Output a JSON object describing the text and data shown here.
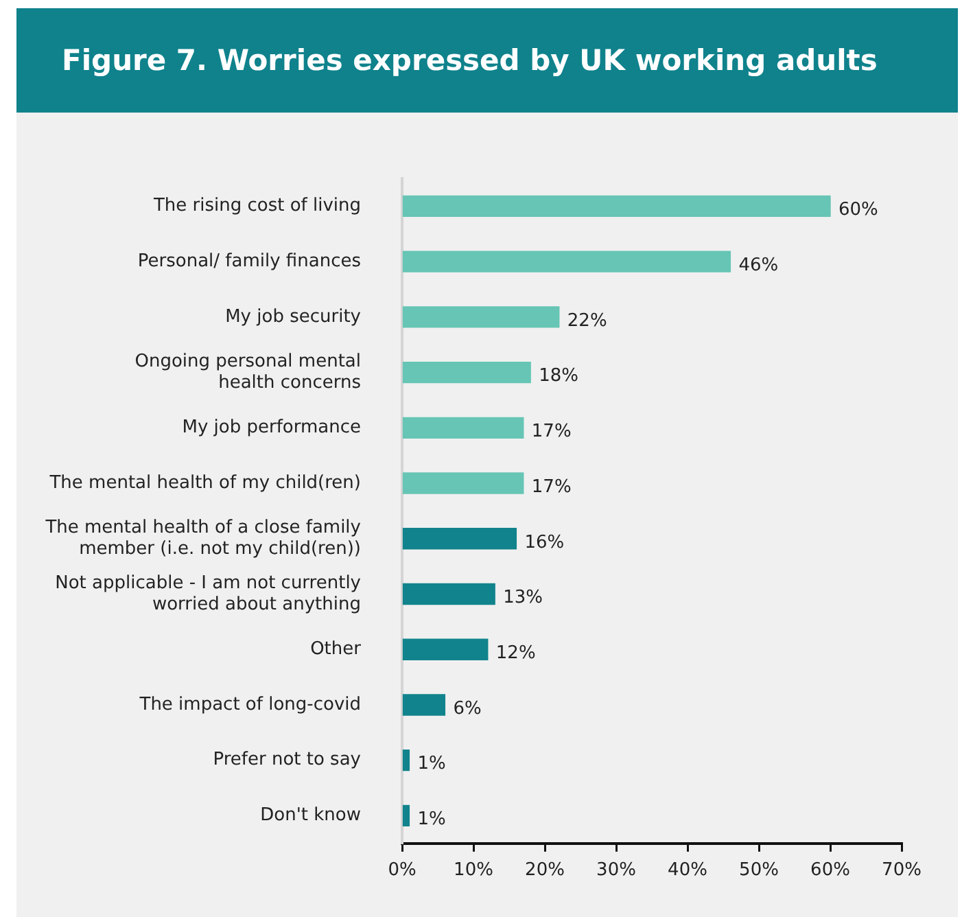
{
  "chart_data": {
    "type": "bar",
    "orientation": "horizontal",
    "title": "Figure 7. Worries expressed by UK working adults",
    "categories": [
      "The rising cost of living",
      "Personal/ family finances",
      "My job security",
      "Ongoing personal mental\nhealth concerns",
      "My job performance",
      "The mental health of my child(ren)",
      "The mental health of a close family\nmember (i.e. not my child(ren))",
      "Not applicable - I am not currently\nworried about anything",
      "Other",
      "The impact of long-covid",
      "Prefer not to say",
      "Don't know"
    ],
    "values": [
      60,
      46,
      22,
      18,
      17,
      17,
      16,
      13,
      12,
      6,
      1,
      1
    ],
    "value_labels": [
      "60%",
      "46%",
      "22%",
      "18%",
      "17%",
      "17%",
      "16%",
      "13%",
      "12%",
      "6%",
      "1%",
      "1%"
    ],
    "colors": [
      "#66c5b4",
      "#66c5b4",
      "#66c5b4",
      "#66c5b4",
      "#66c5b4",
      "#66c5b4",
      "#11838c",
      "#11838c",
      "#11838c",
      "#11838c",
      "#11838c",
      "#11838c"
    ],
    "xlim": [
      0,
      70
    ],
    "xticks": [
      {
        "value": 0,
        "label": "0%"
      },
      {
        "value": 10,
        "label": "10%"
      },
      {
        "value": 20,
        "label": "20%"
      },
      {
        "value": 30,
        "label": "30%"
      },
      {
        "value": 40,
        "label": "40%"
      },
      {
        "value": 50,
        "label": "50%"
      },
      {
        "value": 60,
        "label": "60%"
      },
      {
        "value": 70,
        "label": "70%"
      }
    ],
    "grid": false,
    "legend": false
  }
}
